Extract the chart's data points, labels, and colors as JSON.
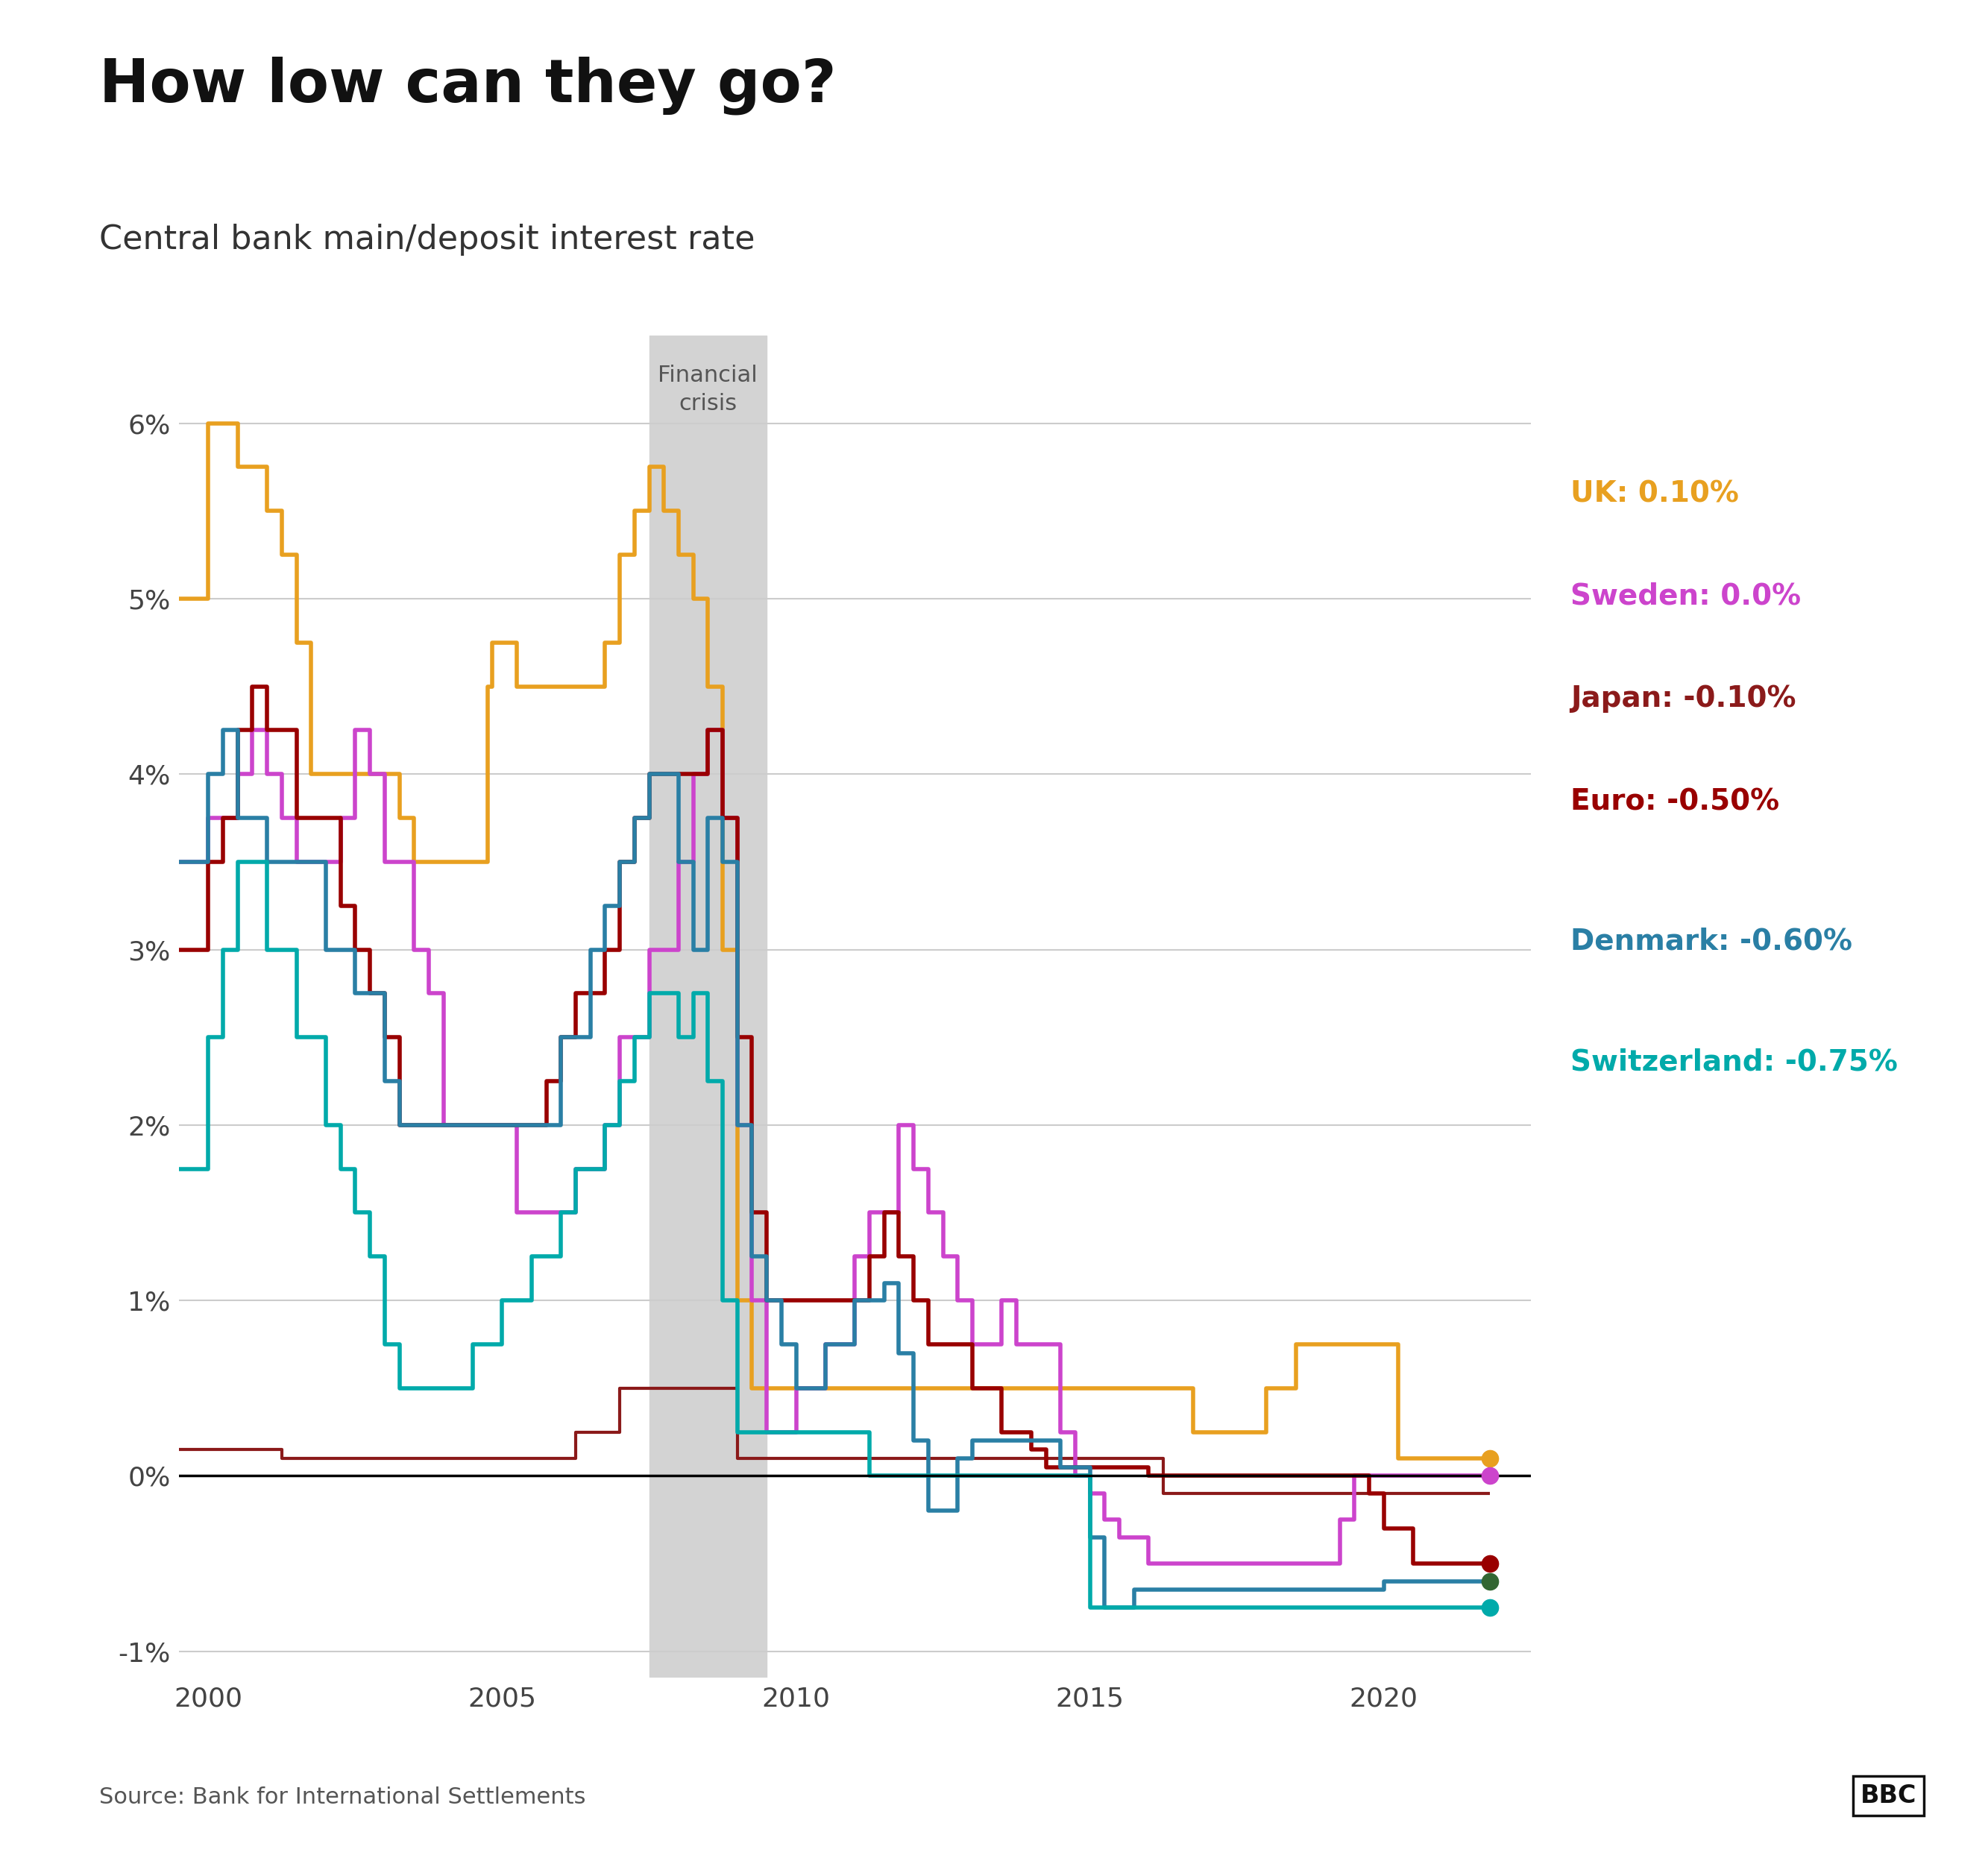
{
  "title": "How low can they go?",
  "subtitle": "Central bank main/deposit interest rate",
  "source": "Source: Bank for International Settlements",
  "crisis_start": 2007.5,
  "crisis_end": 2009.5,
  "crisis_label": "Financial\ncrisis",
  "xlim": [
    1999.5,
    2022.5
  ],
  "ylim": [
    -1.15,
    6.5
  ],
  "yticks": [
    -1,
    0,
    1,
    2,
    3,
    4,
    5,
    6
  ],
  "ytick_labels": [
    "-1%",
    "0%",
    "1%",
    "2%",
    "3%",
    "4%",
    "5%",
    "6%"
  ],
  "xticks": [
    2000,
    2005,
    2010,
    2015,
    2020
  ],
  "zero_line_color": "#000000",
  "grid_color": "#cccccc",
  "background_color": "#ffffff",
  "series": {
    "UK": {
      "color": "#e8a020",
      "lw": 4.0,
      "data": [
        [
          1999.5,
          5.0
        ],
        [
          2000.0,
          6.0
        ],
        [
          2000.25,
          6.0
        ],
        [
          2000.5,
          5.75
        ],
        [
          2001.0,
          5.5
        ],
        [
          2001.25,
          5.25
        ],
        [
          2001.5,
          4.75
        ],
        [
          2001.75,
          4.0
        ],
        [
          2002.0,
          4.0
        ],
        [
          2003.25,
          3.75
        ],
        [
          2003.5,
          3.5
        ],
        [
          2004.0,
          3.5
        ],
        [
          2004.75,
          4.5
        ],
        [
          2004.83,
          4.75
        ],
        [
          2005.0,
          4.75
        ],
        [
          2005.25,
          4.5
        ],
        [
          2006.5,
          4.5
        ],
        [
          2006.75,
          4.75
        ],
        [
          2007.0,
          5.25
        ],
        [
          2007.25,
          5.5
        ],
        [
          2007.5,
          5.75
        ],
        [
          2007.75,
          5.5
        ],
        [
          2008.0,
          5.25
        ],
        [
          2008.25,
          5.0
        ],
        [
          2008.5,
          4.5
        ],
        [
          2008.75,
          3.0
        ],
        [
          2009.0,
          1.0
        ],
        [
          2009.25,
          0.5
        ],
        [
          2009.5,
          0.5
        ],
        [
          2016.5,
          0.5
        ],
        [
          2016.75,
          0.25
        ],
        [
          2017.0,
          0.25
        ],
        [
          2018.0,
          0.5
        ],
        [
          2018.5,
          0.75
        ],
        [
          2020.0,
          0.75
        ],
        [
          2020.25,
          0.1
        ],
        [
          2021.8,
          0.1
        ]
      ]
    },
    "Sweden": {
      "color": "#cc44cc",
      "lw": 4.0,
      "data": [
        [
          1999.5,
          3.5
        ],
        [
          2000.0,
          3.75
        ],
        [
          2000.5,
          4.0
        ],
        [
          2000.75,
          4.25
        ],
        [
          2001.0,
          4.0
        ],
        [
          2001.25,
          3.75
        ],
        [
          2001.5,
          3.5
        ],
        [
          2002.25,
          3.75
        ],
        [
          2002.5,
          4.25
        ],
        [
          2002.75,
          4.0
        ],
        [
          2003.0,
          3.5
        ],
        [
          2003.5,
          3.0
        ],
        [
          2003.75,
          2.75
        ],
        [
          2004.0,
          2.0
        ],
        [
          2005.25,
          1.5
        ],
        [
          2006.25,
          1.75
        ],
        [
          2006.75,
          2.0
        ],
        [
          2007.0,
          2.5
        ],
        [
          2007.5,
          3.0
        ],
        [
          2008.0,
          3.5
        ],
        [
          2008.25,
          4.0
        ],
        [
          2008.5,
          4.25
        ],
        [
          2008.75,
          3.75
        ],
        [
          2009.0,
          2.0
        ],
        [
          2009.25,
          1.0
        ],
        [
          2009.5,
          0.25
        ],
        [
          2010.0,
          0.5
        ],
        [
          2010.5,
          0.75
        ],
        [
          2011.0,
          1.25
        ],
        [
          2011.25,
          1.5
        ],
        [
          2011.75,
          2.0
        ],
        [
          2012.0,
          1.75
        ],
        [
          2012.25,
          1.5
        ],
        [
          2012.5,
          1.25
        ],
        [
          2012.75,
          1.0
        ],
        [
          2013.0,
          0.75
        ],
        [
          2013.5,
          1.0
        ],
        [
          2013.75,
          0.75
        ],
        [
          2014.25,
          0.75
        ],
        [
          2014.5,
          0.25
        ],
        [
          2014.75,
          0.0
        ],
        [
          2015.0,
          -0.1
        ],
        [
          2015.25,
          -0.25
        ],
        [
          2015.5,
          -0.35
        ],
        [
          2016.0,
          -0.5
        ],
        [
          2019.0,
          -0.5
        ],
        [
          2019.25,
          -0.25
        ],
        [
          2019.5,
          0.0
        ],
        [
          2021.8,
          0.0
        ]
      ]
    },
    "Japan": {
      "color": "#8b1a1a",
      "lw": 3.0,
      "data": [
        [
          1999.5,
          0.15
        ],
        [
          2001.0,
          0.15
        ],
        [
          2001.25,
          0.1
        ],
        [
          2006.0,
          0.1
        ],
        [
          2006.25,
          0.25
        ],
        [
          2007.0,
          0.5
        ],
        [
          2008.75,
          0.5
        ],
        [
          2009.0,
          0.1
        ],
        [
          2016.0,
          0.1
        ],
        [
          2016.25,
          -0.1
        ],
        [
          2021.8,
          -0.1
        ]
      ]
    },
    "Euro": {
      "color": "#990000",
      "lw": 4.0,
      "data": [
        [
          1999.5,
          3.0
        ],
        [
          2000.0,
          3.5
        ],
        [
          2000.25,
          3.75
        ],
        [
          2000.5,
          4.25
        ],
        [
          2000.75,
          4.5
        ],
        [
          2001.0,
          4.25
        ],
        [
          2001.5,
          3.75
        ],
        [
          2002.25,
          3.25
        ],
        [
          2002.5,
          3.0
        ],
        [
          2002.75,
          2.75
        ],
        [
          2003.0,
          2.5
        ],
        [
          2003.25,
          2.0
        ],
        [
          2004.0,
          2.0
        ],
        [
          2005.75,
          2.25
        ],
        [
          2006.0,
          2.5
        ],
        [
          2006.25,
          2.75
        ],
        [
          2006.75,
          3.0
        ],
        [
          2007.0,
          3.5
        ],
        [
          2007.25,
          3.75
        ],
        [
          2007.5,
          4.0
        ],
        [
          2008.5,
          4.25
        ],
        [
          2008.75,
          3.75
        ],
        [
          2009.0,
          2.5
        ],
        [
          2009.25,
          1.5
        ],
        [
          2009.5,
          1.0
        ],
        [
          2011.0,
          1.0
        ],
        [
          2011.25,
          1.25
        ],
        [
          2011.5,
          1.5
        ],
        [
          2011.75,
          1.25
        ],
        [
          2012.0,
          1.0
        ],
        [
          2012.25,
          0.75
        ],
        [
          2013.0,
          0.5
        ],
        [
          2013.5,
          0.25
        ],
        [
          2014.0,
          0.15
        ],
        [
          2014.25,
          0.05
        ],
        [
          2016.0,
          0.0
        ],
        [
          2019.5,
          0.0
        ],
        [
          2019.75,
          -0.1
        ],
        [
          2020.0,
          -0.3
        ],
        [
          2020.5,
          -0.5
        ],
        [
          2021.8,
          -0.5
        ]
      ]
    },
    "Denmark": {
      "color": "#2a7fa5",
      "lw": 4.0,
      "data": [
        [
          1999.5,
          3.5
        ],
        [
          2000.0,
          4.0
        ],
        [
          2000.25,
          4.25
        ],
        [
          2000.5,
          3.75
        ],
        [
          2001.0,
          3.5
        ],
        [
          2002.0,
          3.0
        ],
        [
          2002.5,
          2.75
        ],
        [
          2003.0,
          2.25
        ],
        [
          2003.25,
          2.0
        ],
        [
          2004.5,
          2.0
        ],
        [
          2005.0,
          2.0
        ],
        [
          2006.0,
          2.5
        ],
        [
          2006.5,
          3.0
        ],
        [
          2006.75,
          3.25
        ],
        [
          2007.0,
          3.5
        ],
        [
          2007.25,
          3.75
        ],
        [
          2007.5,
          4.0
        ],
        [
          2008.0,
          3.5
        ],
        [
          2008.25,
          3.0
        ],
        [
          2008.5,
          3.75
        ],
        [
          2008.75,
          3.5
        ],
        [
          2009.0,
          2.0
        ],
        [
          2009.25,
          1.25
        ],
        [
          2009.5,
          1.0
        ],
        [
          2009.75,
          0.75
        ],
        [
          2010.0,
          0.5
        ],
        [
          2010.5,
          0.75
        ],
        [
          2011.0,
          1.0
        ],
        [
          2011.5,
          1.1
        ],
        [
          2011.75,
          0.7
        ],
        [
          2012.0,
          0.2
        ],
        [
          2012.25,
          -0.2
        ],
        [
          2012.75,
          0.1
        ],
        [
          2013.0,
          0.2
        ],
        [
          2014.0,
          0.2
        ],
        [
          2014.5,
          0.05
        ],
        [
          2015.0,
          -0.35
        ],
        [
          2015.25,
          -0.75
        ],
        [
          2015.75,
          -0.65
        ],
        [
          2016.0,
          -0.65
        ],
        [
          2019.5,
          -0.65
        ],
        [
          2020.0,
          -0.6
        ],
        [
          2021.8,
          -0.6
        ]
      ]
    },
    "Switzerland": {
      "color": "#00aaaa",
      "lw": 4.0,
      "data": [
        [
          1999.5,
          1.75
        ],
        [
          2000.0,
          2.5
        ],
        [
          2000.25,
          3.0
        ],
        [
          2000.5,
          3.5
        ],
        [
          2001.0,
          3.0
        ],
        [
          2001.5,
          2.5
        ],
        [
          2002.0,
          2.0
        ],
        [
          2002.25,
          1.75
        ],
        [
          2002.5,
          1.5
        ],
        [
          2002.75,
          1.25
        ],
        [
          2003.0,
          0.75
        ],
        [
          2003.25,
          0.5
        ],
        [
          2004.0,
          0.5
        ],
        [
          2004.5,
          0.75
        ],
        [
          2005.0,
          1.0
        ],
        [
          2005.5,
          1.25
        ],
        [
          2006.0,
          1.5
        ],
        [
          2006.25,
          1.75
        ],
        [
          2006.75,
          2.0
        ],
        [
          2007.0,
          2.25
        ],
        [
          2007.25,
          2.5
        ],
        [
          2007.5,
          2.75
        ],
        [
          2008.0,
          2.5
        ],
        [
          2008.25,
          2.75
        ],
        [
          2008.5,
          2.25
        ],
        [
          2008.75,
          1.0
        ],
        [
          2009.0,
          0.25
        ],
        [
          2009.5,
          0.25
        ],
        [
          2011.0,
          0.25
        ],
        [
          2011.25,
          0.0
        ],
        [
          2014.75,
          0.0
        ],
        [
          2015.0,
          -0.75
        ],
        [
          2021.8,
          -0.75
        ]
      ]
    }
  },
  "legend": [
    {
      "label": "UK: 0.10%",
      "color": "#e8a020",
      "dot": true,
      "dot_val": 0.1,
      "dot_color": "#e8a020"
    },
    {
      "label": "Sweden: 0.0%",
      "color": "#cc44cc",
      "dot": true,
      "dot_val": 0.0,
      "dot_color": "#cc44cc"
    },
    {
      "label": "Japan: -0.10%",
      "color": "#8b1a1a",
      "dot": false,
      "dot_val": -0.1,
      "dot_color": "#8b1a1a"
    },
    {
      "label": "Euro: -0.50%",
      "color": "#990000",
      "dot": true,
      "dot_val": -0.5,
      "dot_color": "#990000"
    },
    {
      "label": "Denmark: -0.60%",
      "color": "#2a7fa5",
      "dot": true,
      "dot_val": -0.6,
      "dot_color": "#336633"
    },
    {
      "label": "Switzerland: -0.75%",
      "color": "#00aaaa",
      "dot": true,
      "dot_val": -0.75,
      "dot_color": "#00aaaa"
    }
  ]
}
